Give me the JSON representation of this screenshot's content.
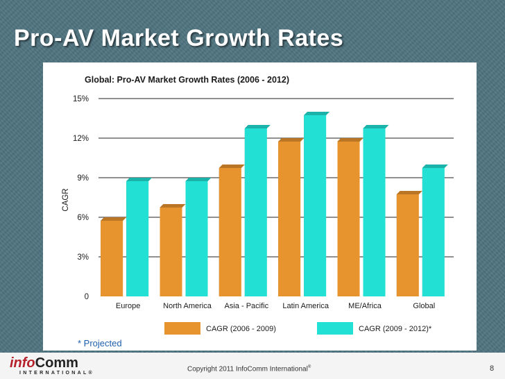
{
  "slide": {
    "title": "Pro-AV Market Growth Rates",
    "footnote": "* Projected",
    "copyright": "Copyright 2011 InfoComm International",
    "copyright_mark": "®",
    "page_number": "8",
    "logo": {
      "italic": "info",
      "rest": "Comm",
      "tagline": "INTERNATIONAL®"
    }
  },
  "chart_data": {
    "type": "bar",
    "title": "Global: Pro-AV Market Growth Rates (2006 - 2012)",
    "ylabel": "CAGR",
    "xlabel": "",
    "categories": [
      "Europe",
      "North America",
      "Asia - Pacific",
      "Latin America",
      "ME/Africa",
      "Global"
    ],
    "series": [
      {
        "name": "CAGR (2006 - 2009)",
        "color": "#e8942e",
        "values": [
          6,
          7,
          10,
          12,
          12,
          8
        ]
      },
      {
        "name": "CAGR (2009 - 2012)*",
        "color": "#22e0d3",
        "values": [
          9,
          9,
          13,
          14,
          13,
          10
        ]
      }
    ],
    "yticks": [
      "0",
      "3%",
      "6%",
      "9%",
      "12%",
      "15%"
    ],
    "ylim": [
      0,
      15
    ],
    "grid": true,
    "legend": "bottom"
  }
}
